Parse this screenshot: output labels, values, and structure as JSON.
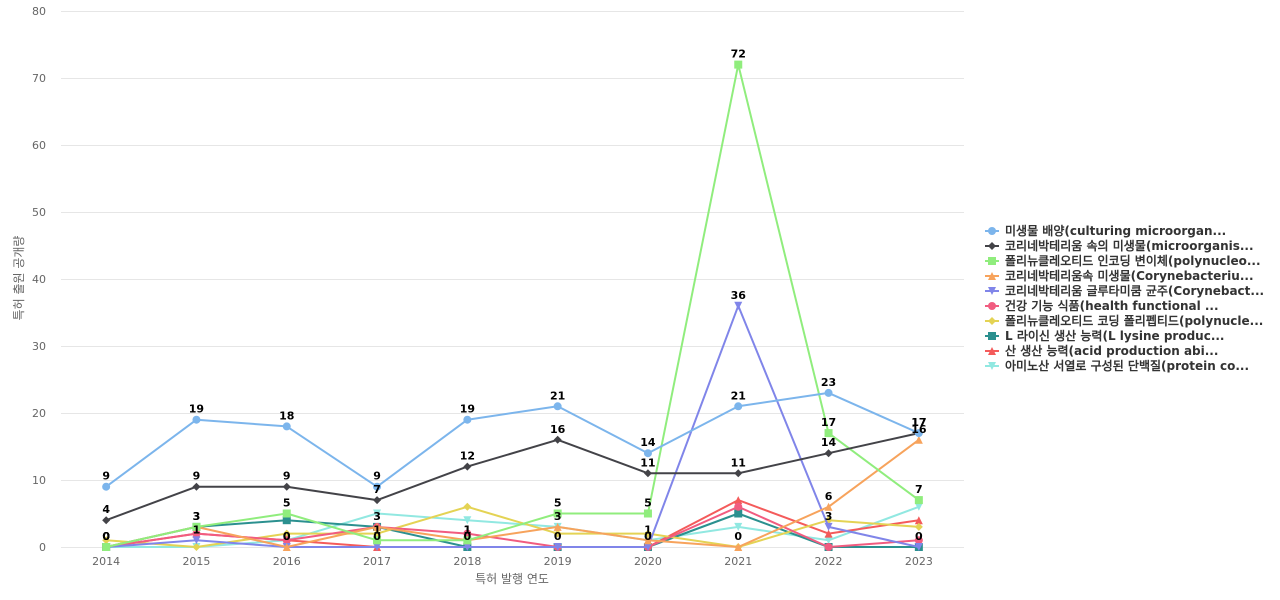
{
  "chart_data": {
    "type": "line",
    "xlabel": "특허 발행 연도",
    "ylabel": "특허 출원 공개량",
    "ylim": [
      0,
      80
    ],
    "yticks": [
      0,
      10,
      20,
      30,
      40,
      50,
      60,
      70,
      80
    ],
    "categories": [
      "2014",
      "2015",
      "2016",
      "2017",
      "2018",
      "2019",
      "2020",
      "2021",
      "2022",
      "2023"
    ],
    "legend_position": "right",
    "grid": true,
    "series": [
      {
        "name": "미생물 배양(culturing microorgan...",
        "color": "#7cb5ec",
        "marker": "circle",
        "values": [
          9,
          19,
          18,
          9,
          19,
          21,
          14,
          21,
          23,
          17
        ],
        "labeled": true
      },
      {
        "name": "코리네박테리움 속의 미생물(microorganis...",
        "color": "#434348",
        "marker": "diamond",
        "values": [
          4,
          9,
          9,
          7,
          12,
          16,
          11,
          11,
          14,
          17
        ],
        "labeled": true
      },
      {
        "name": "폴리뉴클레오티드 인코딩 변이체(polynucleo...",
        "color": "#90ed7d",
        "marker": "square",
        "values": [
          0,
          3,
          5,
          1,
          1,
          5,
          5,
          72,
          17,
          7
        ],
        "labeled": true
      },
      {
        "name": "코리네박테리움속 미생물(Corynebacteriu...",
        "color": "#f7a35c",
        "marker": "triangle",
        "values": [
          0,
          3,
          0,
          3,
          1,
          3,
          1,
          0,
          6,
          16
        ],
        "labeled": true
      },
      {
        "name": "코리네박테리움 글루타미쿰 균주(Corynebact...",
        "color": "#8085e9",
        "marker": "triangle-down",
        "values": [
          0,
          1,
          0,
          0,
          0,
          0,
          0,
          36,
          3,
          0
        ],
        "labeled": true
      },
      {
        "name": "건강 기능 식품(health functional ...",
        "color": "#f15c80",
        "marker": "circle",
        "values": [
          0,
          2,
          1,
          3,
          2,
          0,
          0,
          6,
          0,
          1
        ],
        "labeled": false
      },
      {
        "name": "폴리뉴클레오티드 코딩 폴리펩티드(polynucle...",
        "color": "#e4d354",
        "marker": "diamond",
        "values": [
          1,
          0,
          2,
          2,
          6,
          2,
          2,
          0,
          4,
          3
        ],
        "labeled": false
      },
      {
        "name": "L 라이신 생산 능력(L lysine produc...",
        "color": "#2b908f",
        "marker": "square",
        "values": [
          0,
          3,
          4,
          3,
          0,
          0,
          0,
          5,
          0,
          0
        ],
        "labeled": false
      },
      {
        "name": "산 생산 능력(acid production abi...",
        "color": "#f45b5b",
        "marker": "triangle",
        "values": [
          0,
          2,
          1,
          0,
          0,
          0,
          0,
          7,
          2,
          4
        ],
        "labeled": false
      },
      {
        "name": "아미노산 서열로 구성된 단백질(protein co...",
        "color": "#91e8e1",
        "marker": "triangle-down",
        "values": [
          0,
          0,
          1,
          5,
          4,
          3,
          1,
          3,
          1,
          6
        ],
        "labeled": false
      }
    ]
  }
}
